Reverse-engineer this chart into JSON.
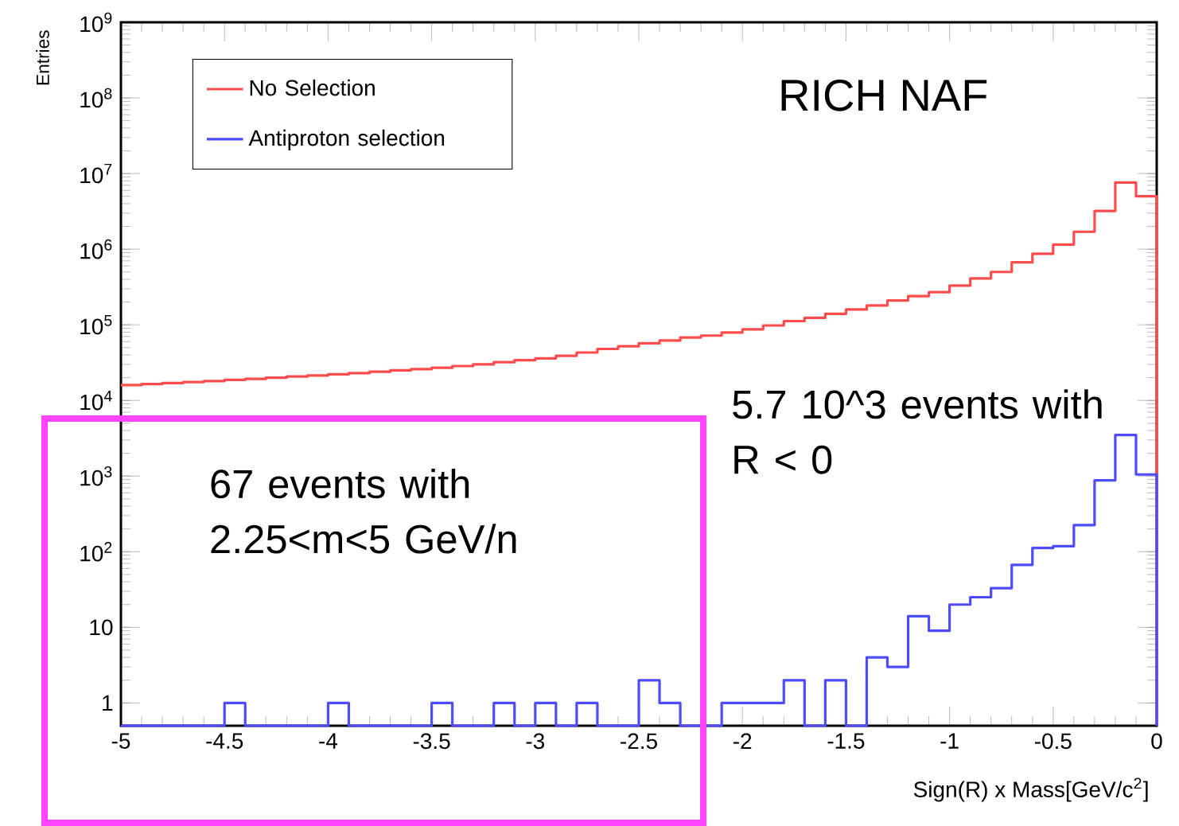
{
  "chart_data": {
    "type": "histogram",
    "title": "RICH NAF",
    "xlabel": "Sign(R) x Mass[GeV/c$^{2}$]",
    "ylabel": "Entries",
    "bins": [
      -5,
      -4.9,
      -4.8,
      -4.7,
      -4.6,
      -4.5,
      -4.4,
      -4.3,
      -4.2,
      -4.1,
      -4,
      -3.9,
      -3.8,
      -3.7,
      -3.6,
      -3.5,
      -3.4,
      -3.3,
      -3.2,
      -3.1,
      -3,
      -2.9,
      -2.8,
      -2.7,
      -2.6,
      -2.5,
      -2.4,
      -2.3,
      -2.2,
      -2.1,
      -2,
      -1.9,
      -1.8,
      -1.7,
      -1.6,
      -1.5,
      -1.4,
      -1.3,
      -1.2,
      -1.1,
      -1,
      -0.9,
      -0.8,
      -0.7,
      -0.6,
      -0.5,
      -0.4,
      -0.3,
      -0.2,
      -0.1,
      0
    ],
    "series": [
      {
        "name": "No Selection",
        "color": "#ff4d4d",
        "values": [
          16000,
          16500,
          17000,
          17500,
          18000,
          18700,
          19300,
          20000,
          20700,
          21400,
          22200,
          23000,
          24000,
          25000,
          26000,
          27000,
          28500,
          30000,
          32000,
          34000,
          36000,
          39000,
          43000,
          48000,
          52000,
          57000,
          62000,
          68000,
          72000,
          79000,
          87000,
          98000,
          112000,
          124000,
          140000,
          160000,
          180000,
          210000,
          240000,
          270000,
          330000,
          410000,
          500000,
          670000,
          870000,
          1150000,
          1700000,
          3200000,
          7600000,
          5000000
        ]
      },
      {
        "name": "Antiproton selection",
        "color": "#4d4dff",
        "values": [
          null,
          null,
          null,
          null,
          null,
          1,
          null,
          null,
          null,
          null,
          1,
          null,
          null,
          null,
          null,
          1,
          null,
          null,
          1,
          null,
          1,
          null,
          1,
          null,
          null,
          2,
          1,
          null,
          null,
          1,
          1,
          1,
          2,
          null,
          2,
          null,
          4,
          3,
          14,
          9,
          20,
          25,
          33,
          67,
          112,
          118,
          225,
          880,
          3500,
          1050
        ]
      }
    ],
    "log": "y",
    "xlim": [
      -5,
      0
    ],
    "ylim": [
      0.5,
      1000000000
    ],
    "xticks": [
      -5,
      -4.5,
      -4,
      -3.5,
      -3,
      -2.5,
      -2,
      -1.5,
      -1,
      -0.5,
      0
    ],
    "yticks": [
      1,
      10,
      {
        "value": 100,
        "label": "10$^{2}$"
      },
      {
        "value": 1000,
        "label": "10$^{3}$"
      },
      {
        "value": 10000,
        "label": "10$^{4}$"
      },
      {
        "value": 100000,
        "label": "10$^{5}$"
      },
      {
        "value": 1000000,
        "label": "10$^{6}$"
      },
      {
        "value": 10000000,
        "label": "10$^{7}$"
      },
      {
        "value": 100000000,
        "label": "10$^{8}$"
      },
      {
        "value": 1000000000,
        "label": "10$^{9}$"
      }
    ],
    "annotations": [
      "67 events with 2.25<m<5 GeV/n",
      "5.7 10^3 events with R < 0"
    ],
    "legend": "top left"
  }
}
